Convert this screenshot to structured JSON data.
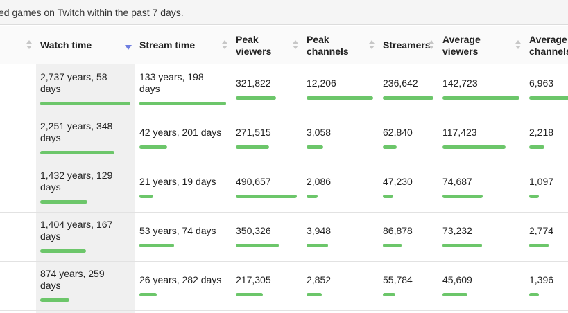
{
  "caption": "ed games on Twitch within the past 7 days.",
  "headers": {
    "watch_time": "Watch time",
    "stream_time": "Stream time",
    "peak_viewers_1": "Peak",
    "peak_viewers_2": "viewers",
    "peak_channels_1": "Peak",
    "peak_channels_2": "channels",
    "streamers": "Streamers",
    "average_viewers_1": "Average",
    "average_viewers_2": "viewers",
    "average_channels_1": "Average",
    "average_channels_2": "channels"
  },
  "sort": {
    "column": "watch_time",
    "direction": "descending"
  },
  "bar_color": "#6cc66a",
  "rows": [
    {
      "watch_time_1": "2,737 years, 58",
      "watch_time_2": "days",
      "stream_time_1": "133 years, 198",
      "stream_time_2": "days",
      "peak_viewers": "321,822",
      "peak_channels": "12,206",
      "streamers": "236,642",
      "average_viewers": "142,723",
      "average_channels": "6,963",
      "fill": {
        "watch": 1.0,
        "stream": 1.0,
        "peak": 0.66,
        "peakch": 1.0,
        "streamers": 1.0,
        "avg": 1.0,
        "avgch": 1.0
      }
    },
    {
      "watch_time_1": "2,251 years, 348",
      "watch_time_2": "days",
      "stream_time_1": "42 years, 201 days",
      "stream_time_2": "",
      "peak_viewers": "271,515",
      "peak_channels": "3,058",
      "streamers": "62,840",
      "average_viewers": "117,423",
      "average_channels": "2,218",
      "fill": {
        "watch": 0.82,
        "stream": 0.32,
        "peak": 0.55,
        "peakch": 0.25,
        "streamers": 0.27,
        "avg": 0.82,
        "avgch": 0.32
      }
    },
    {
      "watch_time_1": "1,432 years, 129",
      "watch_time_2": "days",
      "stream_time_1": "21 years, 19 days",
      "stream_time_2": "",
      "peak_viewers": "490,657",
      "peak_channels": "2,086",
      "streamers": "47,230",
      "average_viewers": "74,687",
      "average_channels": "1,097",
      "fill": {
        "watch": 0.52,
        "stream": 0.16,
        "peak": 1.0,
        "peakch": 0.17,
        "streamers": 0.2,
        "avg": 0.52,
        "avgch": 0.16
      }
    },
    {
      "watch_time_1": "1,404 years, 167",
      "watch_time_2": "days",
      "stream_time_1": "53 years, 74 days",
      "stream_time_2": "",
      "peak_viewers": "350,326",
      "peak_channels": "3,948",
      "streamers": "86,878",
      "average_viewers": "73,232",
      "average_channels": "2,774",
      "fill": {
        "watch": 0.51,
        "stream": 0.4,
        "peak": 0.71,
        "peakch": 0.32,
        "streamers": 0.37,
        "avg": 0.51,
        "avgch": 0.4
      }
    },
    {
      "watch_time_1": "874 years, 259",
      "watch_time_2": "days",
      "stream_time_1": "26 years, 282 days",
      "stream_time_2": "",
      "peak_viewers": "217,305",
      "peak_channels": "2,852",
      "streamers": "55,784",
      "average_viewers": "45,609",
      "average_channels": "1,396",
      "fill": {
        "watch": 0.32,
        "stream": 0.2,
        "peak": 0.44,
        "peakch": 0.23,
        "streamers": 0.24,
        "avg": 0.32,
        "avgch": 0.2
      }
    }
  ]
}
